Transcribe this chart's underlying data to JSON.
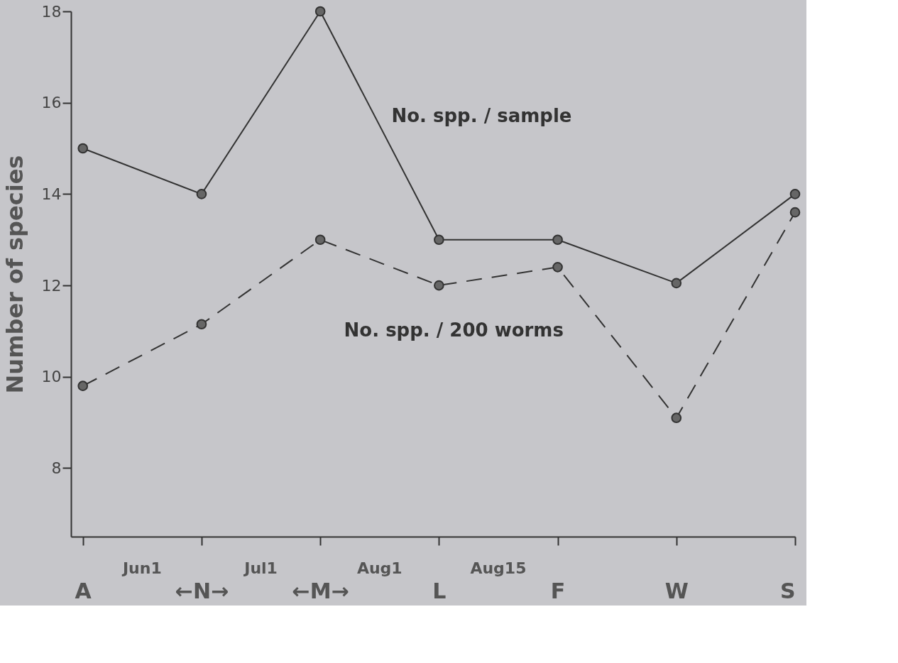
{
  "chart_data": {
    "type": "line",
    "ylabel": "Number of species",
    "categories": [
      "A",
      "←N→",
      "←M→",
      "L",
      "F",
      "W",
      "S"
    ],
    "series": [
      {
        "name": "No. spp. / sample",
        "color": "#333333",
        "line_style": "solid",
        "values": [
          15.0,
          14.0,
          18.0,
          13.0,
          13.0,
          12.05,
          14.0
        ]
      },
      {
        "name": "No. spp. / 200 worms",
        "color": "#333333",
        "line_style": "dashed",
        "values": [
          9.8,
          11.15,
          13.0,
          12.0,
          12.4,
          9.1,
          13.6
        ]
      }
    ],
    "ylim": [
      6.5,
      18
    ],
    "yticks": [
      8,
      10,
      12,
      14,
      16,
      18
    ],
    "annotations": [
      "Jun1",
      "Jul1",
      "Aug1",
      "Aug15"
    ],
    "marker": "circle",
    "grid": false,
    "legend": false
  }
}
